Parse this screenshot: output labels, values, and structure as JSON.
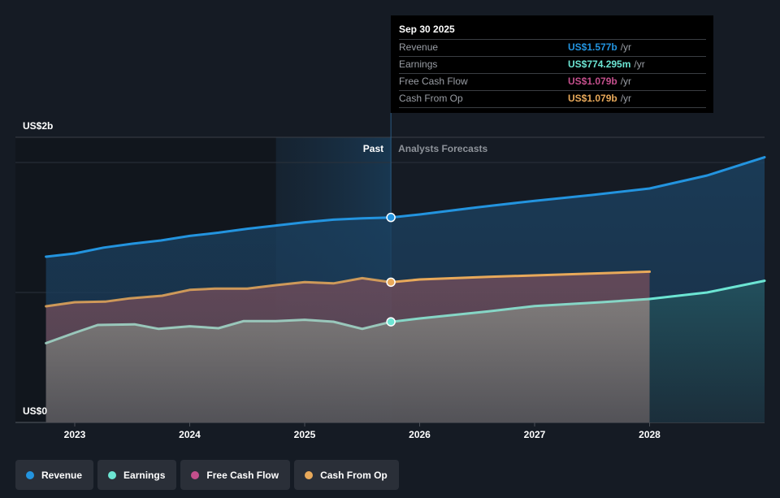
{
  "colors": {
    "background": "#151b24",
    "revenue": "#2394df",
    "earnings": "#6ce5d3",
    "free_cash_flow": "#c44f8c",
    "cash_from_op": "#e8a95a",
    "tooltip_bg": "#000000"
  },
  "tooltip": {
    "date": "Sep 30 2025",
    "rows": [
      {
        "label": "Revenue",
        "value": "US$1.577b",
        "unit": "/yr",
        "color": "#2394df"
      },
      {
        "label": "Earnings",
        "value": "US$774.295m",
        "unit": "/yr",
        "color": "#6ce5d3"
      },
      {
        "label": "Free Cash Flow",
        "value": "US$1.079b",
        "unit": "/yr",
        "color": "#c44f8c"
      },
      {
        "label": "Cash From Op",
        "value": "US$1.079b",
        "unit": "/yr",
        "color": "#e8a95a"
      }
    ]
  },
  "legend": [
    {
      "label": "Revenue",
      "color": "#2394df"
    },
    {
      "label": "Earnings",
      "color": "#6ce5d3"
    },
    {
      "label": "Free Cash Flow",
      "color": "#c44f8c"
    },
    {
      "label": "Cash From Op",
      "color": "#e8a95a"
    }
  ],
  "chart_data": {
    "type": "area",
    "title": "",
    "xlabel": "",
    "ylabel": "",
    "y_unit": "US$ billions",
    "y_tick_labels": [
      {
        "value": 0,
        "label": "US$0"
      },
      {
        "value": 2,
        "label": "US$2b"
      }
    ],
    "ylim": [
      0,
      2.2
    ],
    "gridlines_at": [
      0,
      1,
      2
    ],
    "xlim": [
      2022.75,
      2029.0
    ],
    "x_ticks": [
      2023,
      2024,
      2025,
      2026,
      2027,
      2028
    ],
    "x_tick_labels": [
      "2023",
      "2024",
      "2025",
      "2026",
      "2027",
      "2028"
    ],
    "past_label": "Past",
    "forecast_label": "Analysts Forecasts",
    "divider_x": 2025.75,
    "highlight_start_x": 2024.75,
    "series": [
      {
        "name": "Revenue",
        "color": "#2394df",
        "points": [
          [
            2022.75,
            1.275
          ],
          [
            2023.0,
            1.3
          ],
          [
            2023.25,
            1.345
          ],
          [
            2023.5,
            1.375
          ],
          [
            2023.75,
            1.4
          ],
          [
            2024.0,
            1.435
          ],
          [
            2024.25,
            1.46
          ],
          [
            2024.5,
            1.49
          ],
          [
            2024.75,
            1.515
          ],
          [
            2025.0,
            1.54
          ],
          [
            2025.25,
            1.56
          ],
          [
            2025.5,
            1.57
          ],
          [
            2025.75,
            1.577
          ],
          [
            2026.0,
            1.6
          ],
          [
            2026.5,
            1.655
          ],
          [
            2027.0,
            1.705
          ],
          [
            2027.5,
            1.75
          ],
          [
            2028.0,
            1.8
          ],
          [
            2028.5,
            1.9
          ],
          [
            2029.0,
            2.04
          ]
        ]
      },
      {
        "name": "Cash From Op",
        "color": "#e8a95a",
        "points": [
          [
            2022.75,
            0.894
          ],
          [
            2023.0,
            0.925
          ],
          [
            2023.27,
            0.93
          ],
          [
            2023.48,
            0.955
          ],
          [
            2023.76,
            0.975
          ],
          [
            2024.0,
            1.02
          ],
          [
            2024.22,
            1.03
          ],
          [
            2024.5,
            1.03
          ],
          [
            2024.75,
            1.056
          ],
          [
            2025.0,
            1.08
          ],
          [
            2025.25,
            1.07
          ],
          [
            2025.5,
            1.11
          ],
          [
            2025.75,
            1.079
          ],
          [
            2026.0,
            1.1
          ],
          [
            2026.6,
            1.12
          ],
          [
            2027.3,
            1.14
          ],
          [
            2028.0,
            1.16
          ]
        ]
      },
      {
        "name": "Free Cash Flow",
        "color": "#c44f8c",
        "points": [
          [
            2022.75,
            0.894
          ],
          [
            2023.0,
            0.925
          ],
          [
            2023.27,
            0.93
          ],
          [
            2023.48,
            0.955
          ],
          [
            2023.76,
            0.975
          ],
          [
            2024.0,
            1.02
          ],
          [
            2024.22,
            1.03
          ],
          [
            2024.5,
            1.03
          ],
          [
            2024.75,
            1.056
          ],
          [
            2025.0,
            1.08
          ],
          [
            2025.25,
            1.07
          ],
          [
            2025.5,
            1.11
          ],
          [
            2025.75,
            1.079
          ]
        ]
      },
      {
        "name": "Earnings",
        "color": "#6ce5d3",
        "points": [
          [
            2022.75,
            0.61
          ],
          [
            2023.0,
            0.69
          ],
          [
            2023.2,
            0.75
          ],
          [
            2023.52,
            0.755
          ],
          [
            2023.73,
            0.72
          ],
          [
            2024.0,
            0.74
          ],
          [
            2024.25,
            0.725
          ],
          [
            2024.47,
            0.78
          ],
          [
            2024.75,
            0.78
          ],
          [
            2025.0,
            0.79
          ],
          [
            2025.25,
            0.775
          ],
          [
            2025.5,
            0.72
          ],
          [
            2025.75,
            0.774
          ],
          [
            2026.0,
            0.8
          ],
          [
            2026.6,
            0.855
          ],
          [
            2027.0,
            0.895
          ],
          [
            2027.58,
            0.925
          ],
          [
            2028.0,
            0.95
          ],
          [
            2028.5,
            1.0
          ],
          [
            2029.0,
            1.09
          ]
        ]
      }
    ],
    "highlight_date": "Sep 30 2025",
    "highlight_values": {
      "Revenue": 1.577,
      "Earnings": 0.774295,
      "Free Cash Flow": 1.079,
      "Cash From Op": 1.079
    }
  }
}
